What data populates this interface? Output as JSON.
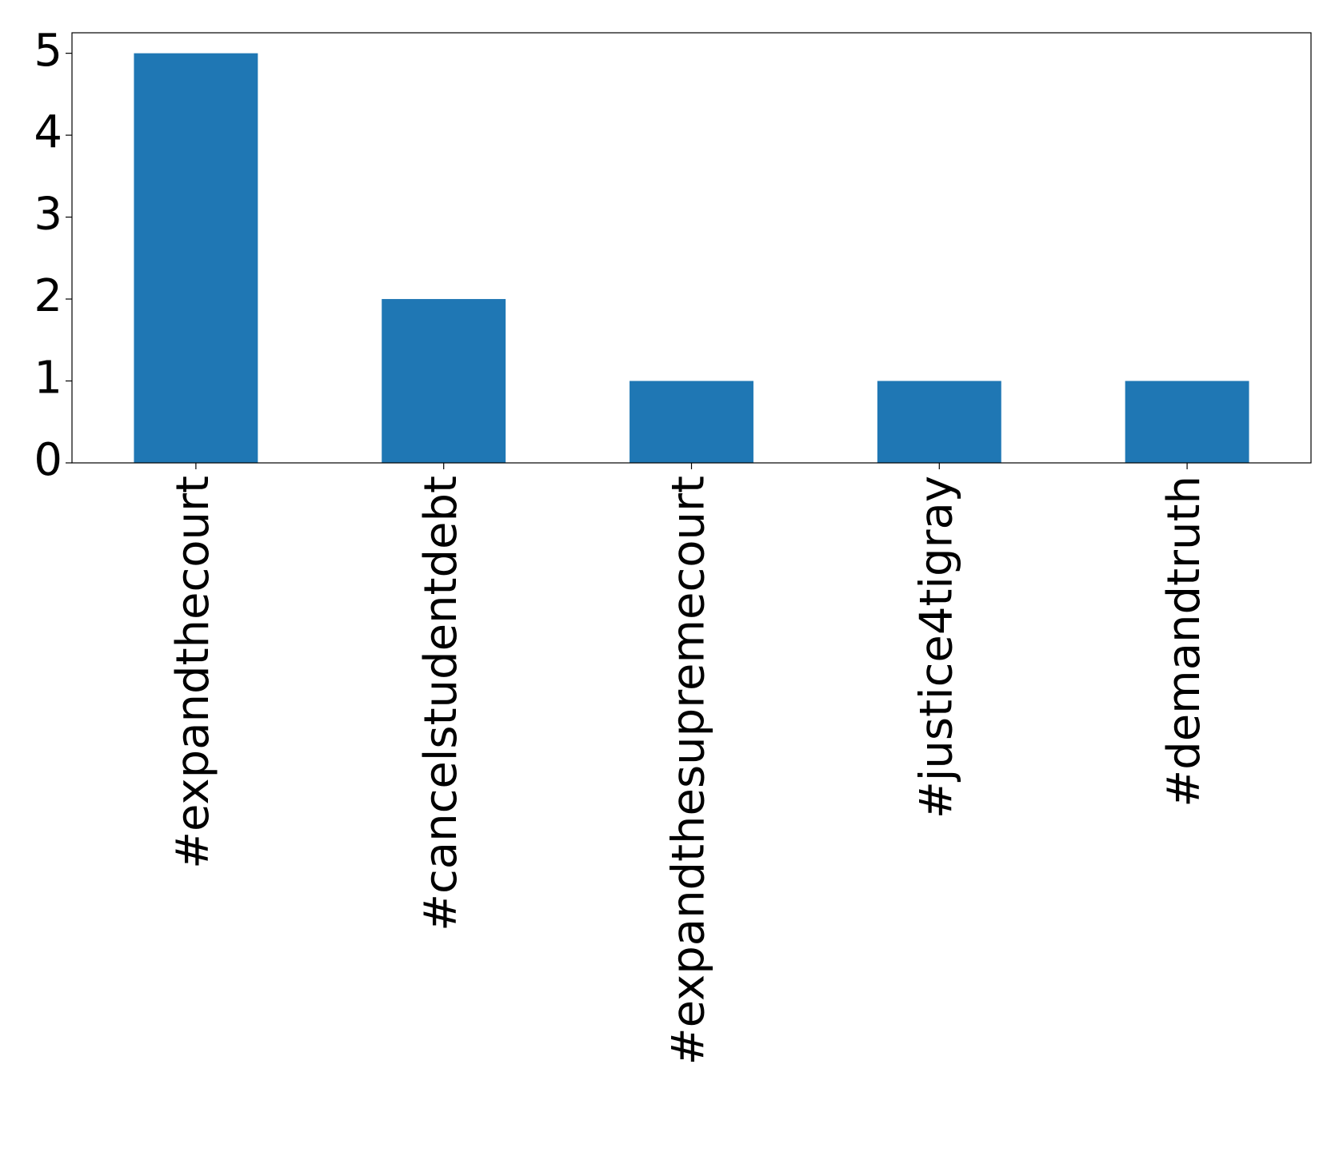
{
  "chart_data": {
    "type": "bar",
    "categories": [
      "#expandthecourt",
      "#cancelstudentdebt",
      "#expandthesupremecourt",
      "#justice4tigray",
      "#demandtruth"
    ],
    "values": [
      5,
      2,
      1,
      1,
      1
    ],
    "color": "#1f77b4",
    "ylim": [
      0,
      5.25
    ],
    "yticks": [
      0,
      1,
      2,
      3,
      4,
      5
    ],
    "grid": false
  }
}
